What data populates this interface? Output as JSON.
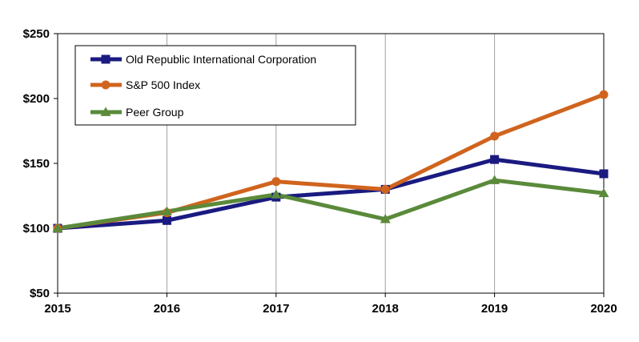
{
  "chart_data": {
    "type": "line",
    "title": "",
    "xlabel": "",
    "ylabel": "",
    "categories": [
      "2015",
      "2016",
      "2017",
      "2018",
      "2019",
      "2020"
    ],
    "ylim": [
      50,
      250
    ],
    "yticks": [
      50,
      100,
      150,
      200,
      250
    ],
    "ytick_labels": [
      "$50",
      "$100",
      "$150",
      "$200",
      "$250"
    ],
    "grid": "vertical",
    "legend_position": "top-left",
    "series": [
      {
        "name": "Old Republic International Corporation",
        "color": "#1a1a80",
        "marker": "square",
        "values": [
          100,
          106,
          124,
          130,
          153,
          142
        ]
      },
      {
        "name": "S&P 500 Index",
        "color": "#d0641e",
        "marker": "circle",
        "values": [
          100,
          112,
          136,
          130,
          171,
          203
        ]
      },
      {
        "name": "Peer Group",
        "color": "#5a8a3a",
        "marker": "triangle",
        "values": [
          100,
          113,
          126,
          107,
          137,
          127
        ]
      }
    ]
  }
}
